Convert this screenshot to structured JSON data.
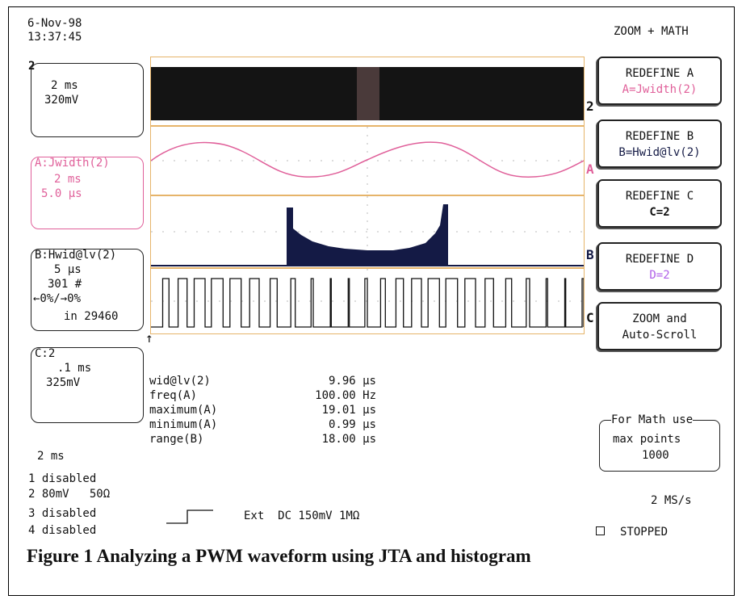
{
  "datetime": {
    "date": "6-Nov-98",
    "time": "13:37:45"
  },
  "mode_title": "ZOOM + MATH",
  "channel_box": {
    "label": "2",
    "timebase": "2 ms",
    "volts": "320mV"
  },
  "math_a": {
    "label": "A:Jwidth(2)",
    "timebase": "2 ms",
    "value": "5.0 µs"
  },
  "math_b": {
    "label": "B:Hwid@lv(2)",
    "timebase": "5 µs",
    "count": "301 #",
    "limits": "←0%/→0%",
    "in_count": "in 29460"
  },
  "math_c": {
    "label": "C:2",
    "timebase": ".1 ms",
    "volts": "325mV"
  },
  "left_timebase": "2 ms",
  "menu": {
    "redefine_a": {
      "title": "REDEFINE A",
      "sub": "A=Jwidth(2)"
    },
    "redefine_b": {
      "title": "REDEFINE B",
      "sub": "B=Hwid@lv(2)"
    },
    "redefine_c": {
      "title": "REDEFINE C",
      "sub": "C=2"
    },
    "redefine_d": {
      "title": "REDEFINE D",
      "sub": "D=2"
    },
    "zoom": {
      "title": "ZOOM and",
      "sub": "Auto-Scroll"
    }
  },
  "math_note": {
    "title": "For Math use",
    "line1": "max points",
    "line2": "1000"
  },
  "trace_labels": {
    "t2": "2",
    "ta": "A",
    "tb": "B",
    "tc": "C"
  },
  "measurements": [
    {
      "label": "wid@lv(2)",
      "value": "9.96 µs"
    },
    {
      "label": "freq(A)",
      "value": "100.00 Hz"
    },
    {
      "label": "maximum(A)",
      "value": "19.01 µs"
    },
    {
      "label": "minimum(A)",
      "value": "0.99 µs"
    },
    {
      "label": "range(B)",
      "value": "18.00 µs"
    }
  ],
  "channels": {
    "ch1": "1 disabled",
    "ch2": "2 80mV   50Ω",
    "ch3": "3 disabled",
    "ch4": "4 disabled"
  },
  "trigger": {
    "text": "Ext  DC 150mV 1MΩ"
  },
  "sample_rate": "2 MS/s",
  "status": "STOPPED",
  "caption": "Figure 1 Analyzing a PWM waveform using JTA and histogram",
  "colors": {
    "math_a": "#e0609a",
    "histogram": "#141a45",
    "math_d": "#b060e8",
    "grid": "#e6b46a"
  }
}
